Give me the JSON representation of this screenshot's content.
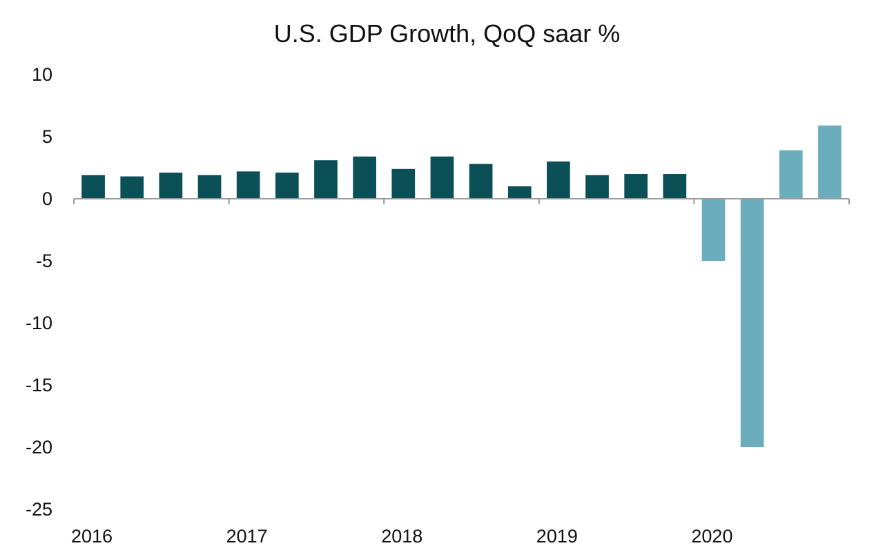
{
  "chart_data": {
    "type": "bar",
    "title": "U.S. GDP Growth, QoQ saar %",
    "xlabel": "",
    "ylabel": "",
    "ylim": [
      -25,
      10
    ],
    "y_ticks": [
      "10",
      "5",
      "0",
      "-5",
      "-10",
      "-15",
      "-20",
      "-25"
    ],
    "x_tick_labels": [
      "2016",
      "2017",
      "2018",
      "2019",
      "2020"
    ],
    "categories": [
      "2016 Q1",
      "2016 Q2",
      "2016 Q3",
      "2016 Q4",
      "2017 Q1",
      "2017 Q2",
      "2017 Q3",
      "2017 Q4",
      "2018 Q1",
      "2018 Q2",
      "2018 Q3",
      "2018 Q4",
      "2019 Q1",
      "2019 Q2",
      "2019 Q3",
      "2019 Q4",
      "2020 Q1",
      "2020 Q2",
      "2020 Q3",
      "2020 Q4"
    ],
    "values": [
      1.9,
      1.8,
      2.1,
      1.9,
      2.2,
      2.1,
      3.1,
      3.4,
      2.4,
      3.4,
      2.8,
      1.0,
      3.0,
      1.9,
      2.0,
      2.0,
      -5.0,
      -20.0,
      3.9,
      5.9
    ],
    "bar_colors": [
      "#0b4f57",
      "#0b4f57",
      "#0b4f57",
      "#0b4f57",
      "#0b4f57",
      "#0b4f57",
      "#0b4f57",
      "#0b4f57",
      "#0b4f57",
      "#0b4f57",
      "#0b4f57",
      "#0b4f57",
      "#0b4f57",
      "#0b4f57",
      "#0b4f57",
      "#0b4f57",
      "#6badbc",
      "#6badbc",
      "#6badbc",
      "#6badbc"
    ],
    "grid": false,
    "legend": "none"
  }
}
